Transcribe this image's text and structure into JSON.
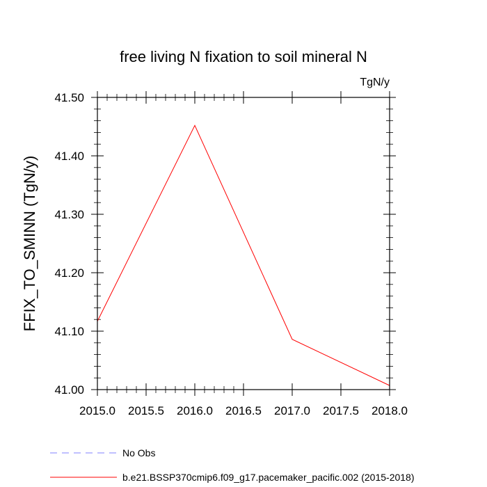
{
  "chart_data": {
    "type": "line",
    "title": "free living N fixation to soil mineral N",
    "units_label": "TgN/y",
    "ylabel": "FFIX_TO_SMINN  (TgN/y)",
    "xlabel": "",
    "xlim": [
      2015.0,
      2018.0
    ],
    "ylim": [
      41.0,
      41.5
    ],
    "x_ticks": [
      "2015.0",
      "2015.5",
      "2016.0",
      "2016.5",
      "2017.0",
      "2017.5",
      "2018.0"
    ],
    "y_ticks": [
      "41.00",
      "41.10",
      "41.20",
      "41.30",
      "41.40",
      "41.50"
    ],
    "series": [
      {
        "name": "b.e21.BSSP370cmip6.f09_g17.pacemaker_pacific.002 (2015-2018)",
        "color": "#ff0000",
        "style": "solid",
        "x": [
          2015,
          2016,
          2017,
          2018
        ],
        "values": [
          41.117,
          41.452,
          41.086,
          41.007
        ]
      }
    ],
    "legend": [
      {
        "label": "No Obs",
        "color": "#8080ff",
        "style": "dashed"
      },
      {
        "label": "b.e21.BSSP370cmip6.f09_g17.pacemaker_pacific.002 (2015-2018)",
        "color": "#ff0000",
        "style": "solid"
      }
    ]
  }
}
